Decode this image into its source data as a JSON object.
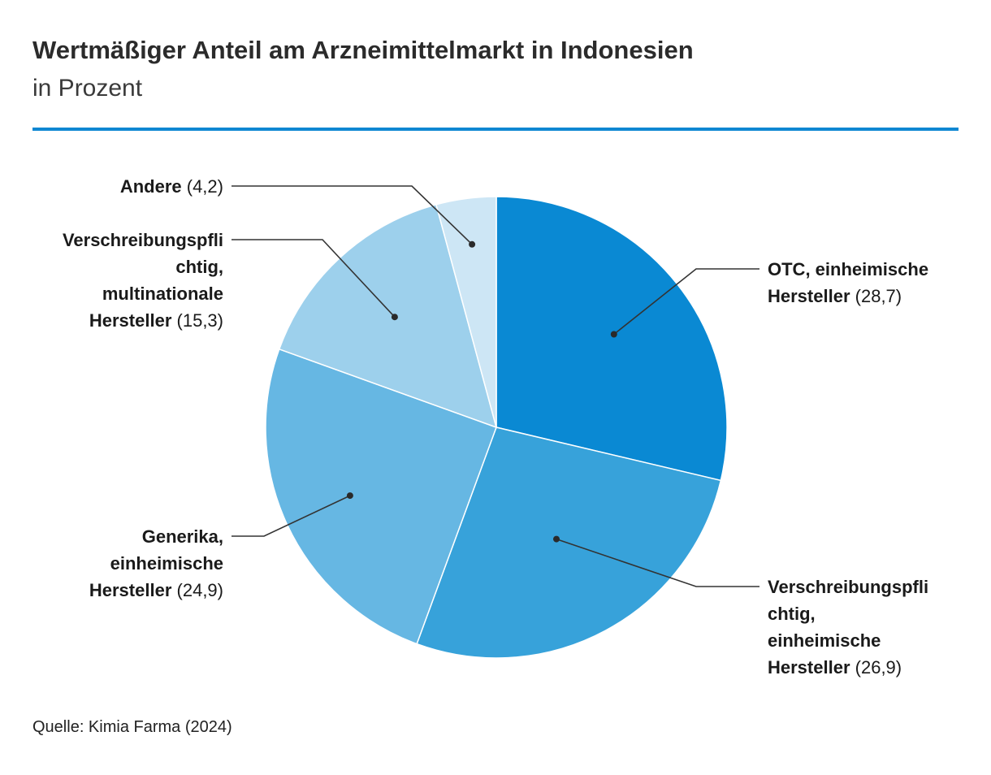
{
  "header": {
    "title": "Wertmäßiger Anteil am Arzneimittelmarkt in Indonesien",
    "subtitle": "in Prozent"
  },
  "colors": {
    "rule": "#0f87d2",
    "leader": "#333333"
  },
  "chart_data": {
    "type": "pie",
    "title": "Wertmäßiger Anteil am Arzneimittelmarkt in Indonesien",
    "subtitle": "in Prozent",
    "start_angle": "12 o'clock",
    "direction": "clockwise",
    "slices": [
      {
        "label_lines": [
          "OTC, einheimische",
          "Hersteller"
        ],
        "value": 28.7,
        "value_text": "(28,7)",
        "color": "#0a89d3"
      },
      {
        "label_lines": [
          "Verschreibungspfli",
          "chtig,",
          "einheimische",
          "Hersteller"
        ],
        "value": 26.9,
        "value_text": "(26,9)",
        "color": "#37a2da"
      },
      {
        "label_lines": [
          "Generika,",
          "einheimische",
          "Hersteller"
        ],
        "value": 24.9,
        "value_text": "(24,9)",
        "color": "#66b7e3"
      },
      {
        "label_lines": [
          "Verschreibungspfli",
          "chtig,",
          "multinationale",
          "Hersteller"
        ],
        "value": 15.3,
        "value_text": "(15,3)",
        "color": "#9dd0ec"
      },
      {
        "label_lines": [
          "Andere"
        ],
        "value": 4.2,
        "value_text": "(4,2)",
        "color": "#cde6f5"
      }
    ]
  },
  "footer": {
    "source": "Quelle: Kimia Farma (2024)"
  }
}
